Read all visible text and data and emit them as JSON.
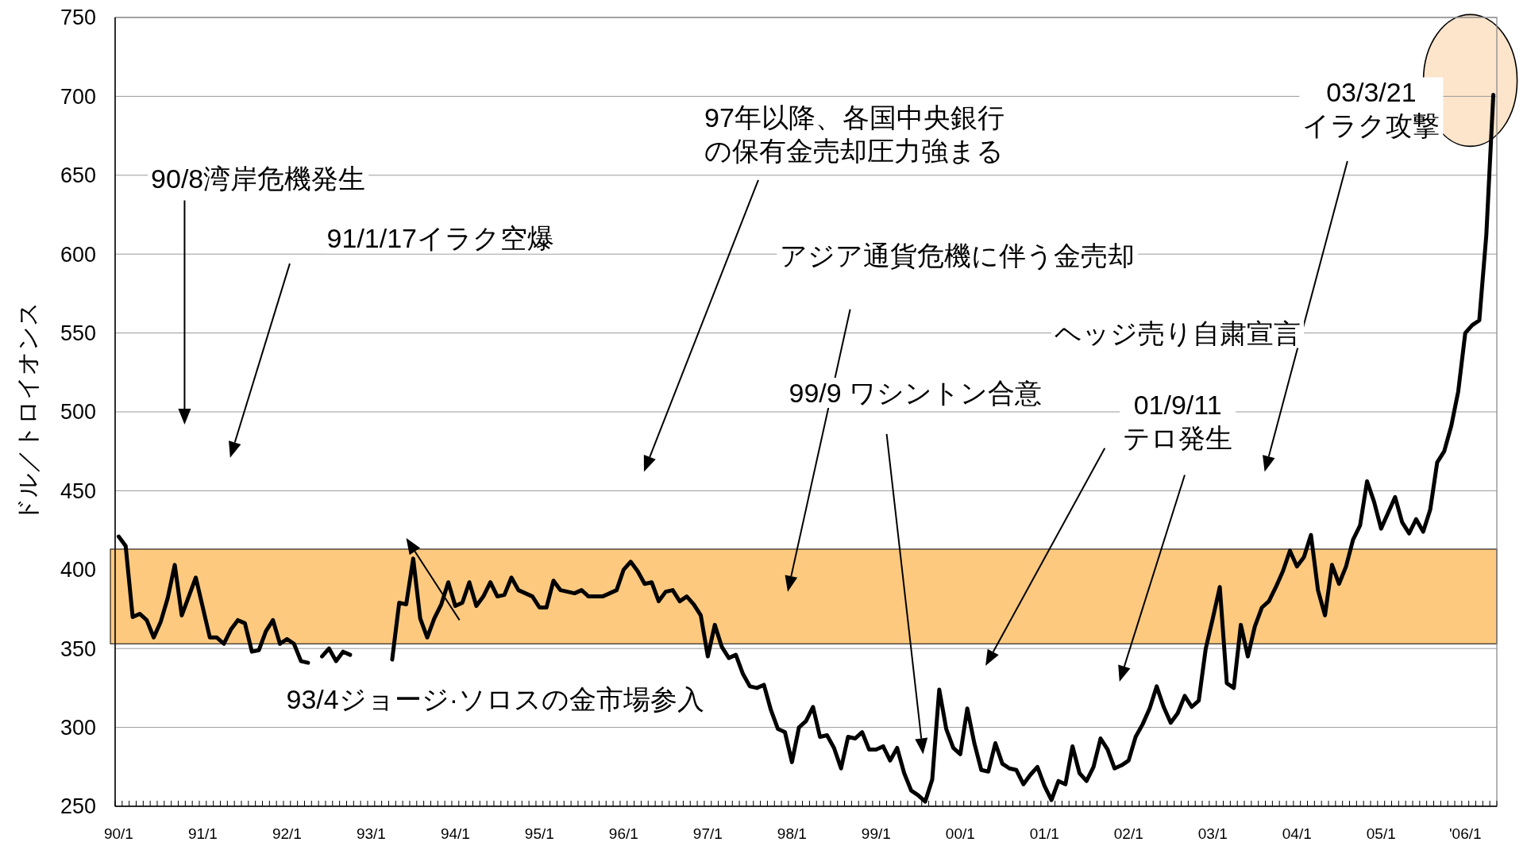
{
  "chart_data": {
    "type": "line",
    "ylabel": "ドル／トロイオンス",
    "categories": [
      "90/1",
      null,
      null,
      null,
      null,
      null,
      null,
      null,
      null,
      null,
      null,
      null,
      "91/1",
      null,
      null,
      null,
      null,
      null,
      null,
      null,
      null,
      null,
      null,
      null,
      "92/1",
      null,
      null,
      null,
      null,
      null,
      null,
      null,
      null,
      null,
      null,
      null,
      "93/1",
      null,
      null,
      null,
      null,
      null,
      null,
      null,
      null,
      null,
      null,
      null,
      "94/1",
      null,
      null,
      null,
      null,
      null,
      null,
      null,
      null,
      null,
      null,
      null,
      "95/1",
      null,
      null,
      null,
      null,
      null,
      null,
      null,
      null,
      null,
      null,
      null,
      "96/1",
      null,
      null,
      null,
      null,
      null,
      null,
      null,
      null,
      null,
      null,
      null,
      "97/1",
      null,
      null,
      null,
      null,
      null,
      null,
      null,
      null,
      null,
      null,
      null,
      "98/1",
      null,
      null,
      null,
      null,
      null,
      null,
      null,
      null,
      null,
      null,
      null,
      "99/1",
      null,
      null,
      null,
      null,
      null,
      null,
      null,
      null,
      null,
      null,
      null,
      "00/1",
      null,
      null,
      null,
      null,
      null,
      null,
      null,
      null,
      null,
      null,
      null,
      "01/1",
      null,
      null,
      null,
      null,
      null,
      null,
      null,
      null,
      null,
      null,
      null,
      "02/1",
      null,
      null,
      null,
      null,
      null,
      null,
      null,
      null,
      null,
      null,
      null,
      "03/1",
      null,
      null,
      null,
      null,
      null,
      null,
      null,
      null,
      null,
      null,
      null,
      "04/1",
      null,
      null,
      null,
      null,
      null,
      null,
      null,
      null,
      null,
      null,
      null,
      "05/1",
      null,
      null,
      null,
      null,
      null,
      null,
      null,
      null,
      null,
      null,
      null,
      "'06/1",
      null,
      null,
      null,
      null
    ],
    "values": [
      421,
      415,
      370,
      372,
      368,
      357,
      367,
      382,
      403,
      371,
      383,
      395,
      376,
      357,
      357,
      353,
      362,
      368,
      366,
      348,
      349,
      361,
      368,
      353,
      356,
      353,
      342,
      341,
      null,
      345,
      350,
      342,
      348,
      346,
      null,
      null,
      null,
      null,
      null,
      343,
      379,
      378,
      407,
      369,
      357,
      369,
      378,
      392,
      377,
      379,
      392,
      377,
      383,
      392,
      383,
      384,
      395,
      387,
      385,
      383,
      376,
      376,
      393,
      387,
      386,
      385,
      387,
      383,
      383,
      383,
      385,
      387,
      400,
      405,
      399,
      391,
      392,
      380,
      386,
      387,
      380,
      383,
      378,
      371,
      345,
      365,
      351,
      344,
      346,
      334,
      326,
      325,
      327,
      311,
      299,
      297,
      278,
      300,
      304,
      313,
      294,
      295,
      287,
      274,
      294,
      293,
      297,
      286,
      286,
      288,
      279,
      287,
      271,
      260,
      257,
      253,
      267,
      324,
      299,
      287,
      283,
      312,
      290,
      273,
      272,
      290,
      277,
      274,
      273,
      264,
      270,
      275,
      263,
      254,
      266,
      264,
      288,
      271,
      266,
      275,
      293,
      286,
      274,
      276,
      279,
      294,
      302,
      312,
      326,
      313,
      303,
      309,
      320,
      313,
      317,
      350,
      369,
      389,
      328,
      325,
      365,
      345,
      364,
      376,
      380,
      389,
      399,
      412,
      402,
      408,
      422,
      387,
      371,
      403,
      391,
      402,
      419,
      428,
      456,
      443,
      426,
      436,
      446,
      430,
      423,
      432,
      424,
      438,
      468,
      475,
      491,
      513,
      550,
      555,
      558,
      612,
      701
    ],
    "color": "#000000",
    "ylim": [
      250,
      750
    ],
    "yticks": [
      250,
      300,
      350,
      400,
      450,
      500,
      550,
      600,
      650,
      700,
      750
    ],
    "grid": "y",
    "bands": [
      {
        "axis": "y",
        "from": 353,
        "to": 413,
        "color": "#fdc97f"
      }
    ],
    "annotations": [
      "90/8湾岸危機発生",
      "91/1/17イラク空爆",
      "93/4ジョージ·ソロスの金市場参入",
      "97年以降、各国中央銀行の保有金売却圧力強まる",
      "アジア通貨危機に伴う金売却",
      "99/9 ワシントン合意",
      "ヘッジ売り自粛宣言",
      "01/9/11\nテロ発生",
      "03/3/21\nイラク攻撃"
    ]
  }
}
